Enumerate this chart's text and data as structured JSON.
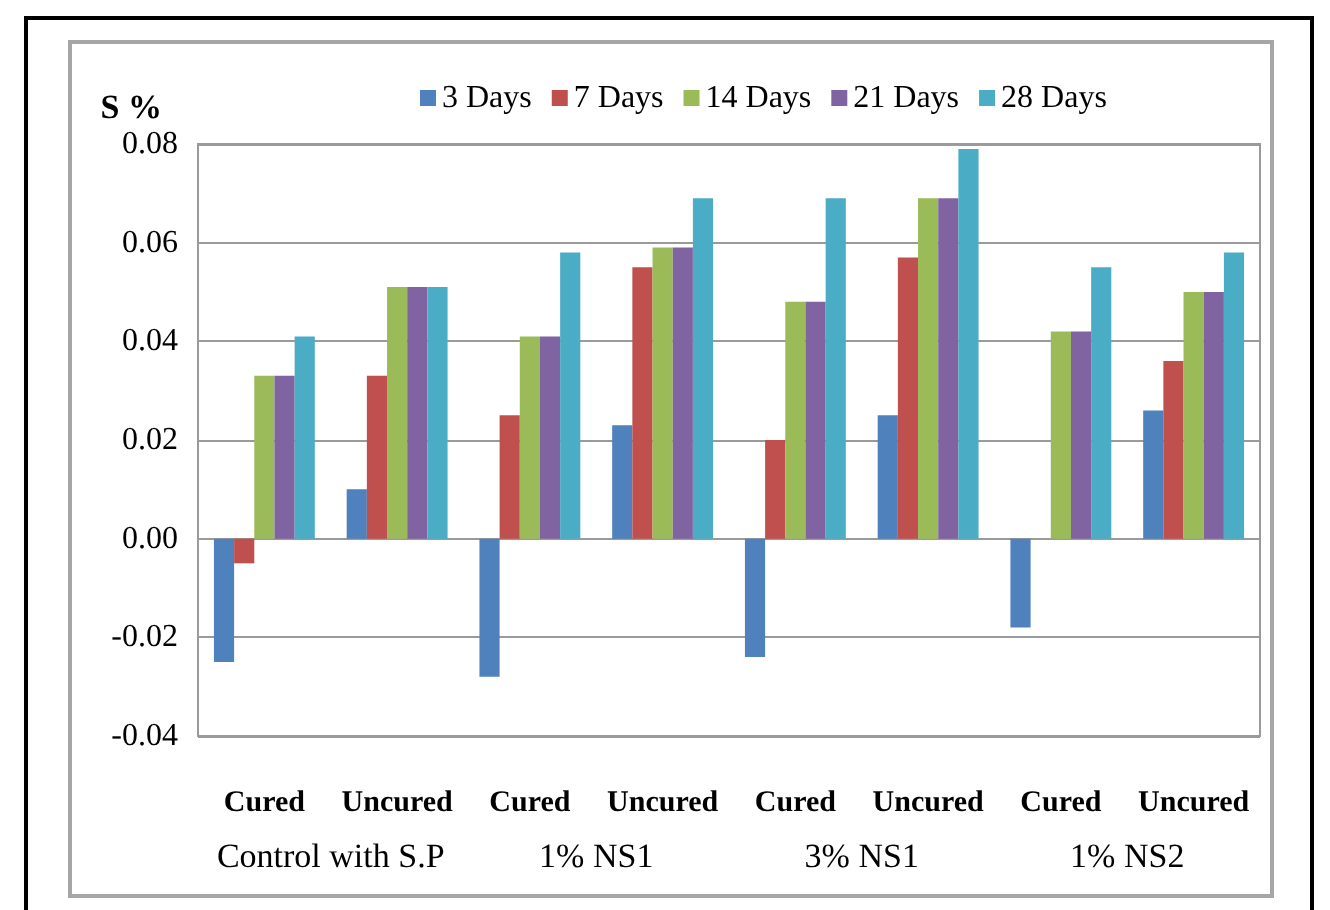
{
  "chart_data": {
    "type": "bar",
    "ylabel": "S %",
    "categories": [
      "Cured",
      "Uncured",
      "Cured",
      "Uncured",
      "Cured",
      "Uncured",
      "Cured",
      "Uncured"
    ],
    "annotations": [
      "Control with S.P",
      "1% NS1",
      "3% NS1",
      "1% NS2"
    ],
    "series": [
      {
        "name": "3 Days",
        "color": "#4f81bd",
        "values": [
          -0.025,
          0.01,
          -0.028,
          0.023,
          -0.024,
          0.025,
          -0.018,
          0.026
        ]
      },
      {
        "name": "7 Days",
        "color": "#c0504d",
        "values": [
          -0.005,
          0.033,
          0.025,
          0.055,
          0.02,
          0.057,
          null,
          0.036
        ]
      },
      {
        "name": "14 Days",
        "color": "#9bbb59",
        "values": [
          0.033,
          0.051,
          0.041,
          0.059,
          0.048,
          0.069,
          0.042,
          0.05
        ]
      },
      {
        "name": "21 Days",
        "color": "#8064a2",
        "values": [
          0.033,
          0.051,
          0.041,
          0.059,
          0.048,
          0.069,
          0.042,
          0.05
        ]
      },
      {
        "name": "28 Days",
        "color": "#4bacc6",
        "values": [
          0.041,
          0.051,
          0.058,
          0.069,
          0.069,
          0.079,
          0.055,
          0.058
        ]
      }
    ],
    "ylim": [
      -0.04,
      0.08
    ],
    "yticks": [
      -0.04,
      -0.02,
      {
        "value": 0,
        "label": "0.00"
      },
      0.02,
      0.04,
      0.06,
      0.08
    ],
    "grid": "y",
    "legend": "top"
  }
}
